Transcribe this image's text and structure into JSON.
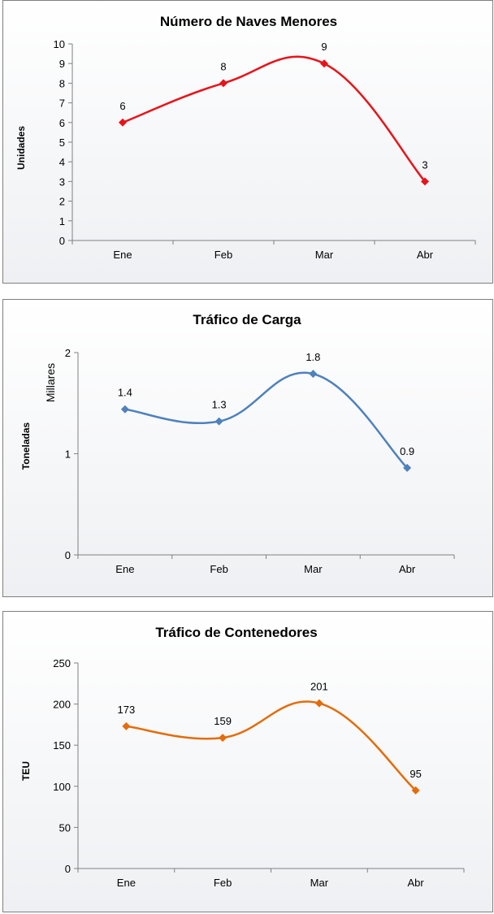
{
  "chart_data": [
    {
      "type": "line",
      "title": "Número de Naves Menores",
      "ylabel": "Unidades",
      "units_label": "",
      "categories": [
        "Ene",
        "Feb",
        "Mar",
        "Abr"
      ],
      "yticks": [
        "0",
        "1",
        "2",
        "3",
        "4",
        "5",
        "6",
        "7",
        "8",
        "9",
        "10"
      ],
      "ylim": [
        0,
        10
      ],
      "series": [
        {
          "color": "#e8141b",
          "values": [
            6,
            8,
            9,
            3
          ],
          "labels": [
            "6",
            "8",
            "9",
            "3"
          ]
        }
      ],
      "grid": false,
      "legend": "none"
    },
    {
      "type": "line",
      "title": "Tráfico de Carga",
      "ylabel": "Toneladas",
      "units_label": "Millares",
      "categories": [
        "Ene",
        "Feb",
        "Mar",
        "Abr"
      ],
      "yticks": [
        "0",
        "1",
        "2"
      ],
      "ylim": [
        0,
        2
      ],
      "series": [
        {
          "color": "#4f81bd",
          "values": [
            1.44,
            1.32,
            1.79,
            0.86
          ],
          "labels": [
            "1.4",
            "1.3",
            "1.8",
            "0.9"
          ]
        }
      ],
      "grid": false,
      "legend": "none"
    },
    {
      "type": "line",
      "title": "Tráfico de Contenedores",
      "ylabel": "TEU",
      "units_label": "",
      "categories": [
        "Ene",
        "Feb",
        "Mar",
        "Abr"
      ],
      "yticks": [
        "0",
        "50",
        "100",
        "150",
        "200",
        "250"
      ],
      "ylim": [
        0,
        250
      ],
      "series": [
        {
          "color": "#e46c0a",
          "values": [
            173,
            159,
            201,
            95
          ],
          "labels": [
            "173",
            "159",
            "201",
            "95"
          ]
        }
      ],
      "grid": false,
      "legend": "none"
    }
  ]
}
